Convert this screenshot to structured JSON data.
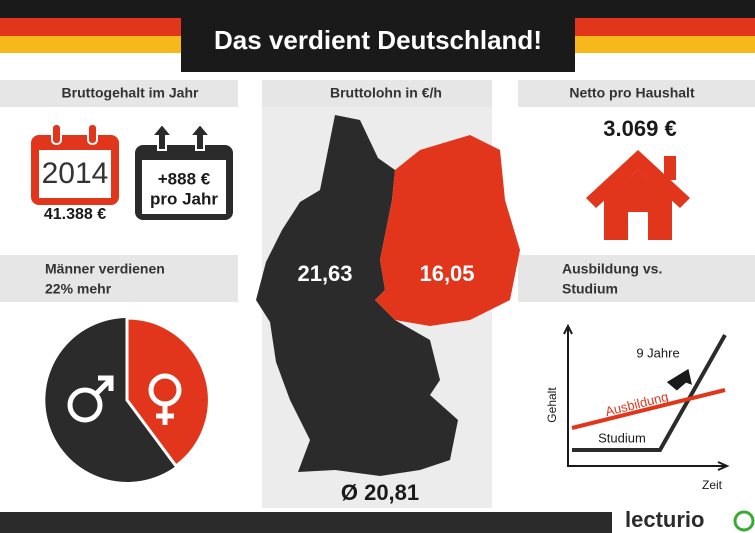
{
  "header": {
    "title": "Das verdient Deutschland!"
  },
  "gross_salary": {
    "label": "Bruttogehalt im Jahr",
    "year": "2014",
    "amount": "41.388 €",
    "increase": "+888 €",
    "increase_unit": "pro Jahr"
  },
  "hourly_wage": {
    "label": "Bruttolohn in €/h",
    "west": "21,63",
    "east": "16,05",
    "average": "Ø 20,81"
  },
  "household_net": {
    "label": "Netto pro Haushalt",
    "amount": "3.069 €"
  },
  "gender_gap": {
    "label_line1": "Männer verdienen",
    "label_line2": "22% mehr"
  },
  "education": {
    "label_line1": "Ausbildung vs.",
    "label_line2": "Studium",
    "y_axis": "Gehalt",
    "x_axis": "Zeit",
    "line_training": "Ausbildung",
    "line_study": "Studium",
    "annotation": "9 Jahre"
  },
  "footer": {
    "logo": "lecturio"
  }
}
